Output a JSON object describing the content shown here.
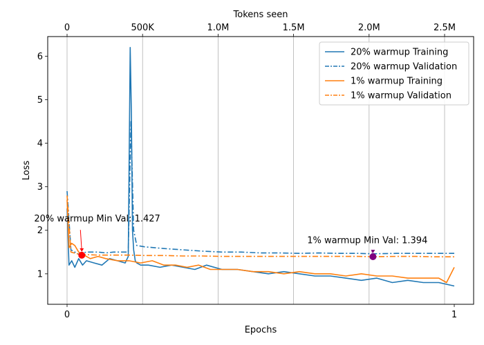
{
  "chart_data": {
    "type": "line",
    "xlabel": "Epochs",
    "ylabel": "Loss",
    "top_xlabel": "Tokens seen",
    "xlim": [
      -0.05,
      1.05
    ],
    "ylim": [
      0.3,
      6.45
    ],
    "x_ticks": [
      {
        "value": 0,
        "label": "0"
      },
      {
        "value": 1,
        "label": "1"
      }
    ],
    "y_ticks": [
      {
        "value": 1,
        "label": "1"
      },
      {
        "value": 2,
        "label": "2"
      },
      {
        "value": 3,
        "label": "3"
      },
      {
        "value": 4,
        "label": "4"
      },
      {
        "value": 5,
        "label": "5"
      },
      {
        "value": 6,
        "label": "6"
      }
    ],
    "top_ticks": [
      {
        "value": 0,
        "label": "0"
      },
      {
        "value": 0.195,
        "label": "500K"
      },
      {
        "value": 0.39,
        "label": "1.0M"
      },
      {
        "value": 0.585,
        "label": "1.5M"
      },
      {
        "value": 0.78,
        "label": "2.0M"
      },
      {
        "value": 0.975,
        "label": "2.5M"
      }
    ],
    "grid": {
      "vertical_at_top_ticks": true
    },
    "legend": {
      "placement": "top-right"
    },
    "series": [
      {
        "name": "20% warmup Training",
        "color": "#1f77b4",
        "style": "solid",
        "x": [
          0,
          0.005,
          0.012,
          0.02,
          0.03,
          0.04,
          0.05,
          0.07,
          0.09,
          0.11,
          0.13,
          0.15,
          0.158,
          0.163,
          0.166,
          0.169,
          0.172,
          0.176,
          0.18,
          0.19,
          0.21,
          0.24,
          0.27,
          0.3,
          0.33,
          0.36,
          0.4,
          0.44,
          0.48,
          0.52,
          0.56,
          0.6,
          0.64,
          0.68,
          0.72,
          0.76,
          0.8,
          0.84,
          0.88,
          0.92,
          0.96,
          1.0
        ],
        "y": [
          2.5,
          1.2,
          1.3,
          1.15,
          1.35,
          1.2,
          1.3,
          1.25,
          1.2,
          1.35,
          1.3,
          1.25,
          1.4,
          6.2,
          4.7,
          2.0,
          1.55,
          1.3,
          1.25,
          1.2,
          1.2,
          1.15,
          1.2,
          1.15,
          1.1,
          1.2,
          1.1,
          1.1,
          1.05,
          1.0,
          1.05,
          1.0,
          0.95,
          0.95,
          0.9,
          0.85,
          0.9,
          0.8,
          0.85,
          0.8,
          0.8,
          0.72
        ]
      },
      {
        "name": "20% warmup Validation",
        "color": "#1f77b4",
        "style": "dashdot",
        "x": [
          0,
          0.01,
          0.03,
          0.05,
          0.08,
          0.1,
          0.12,
          0.14,
          0.158,
          0.165,
          0.172,
          0.18,
          0.2,
          0.25,
          0.3,
          0.35,
          0.4,
          0.45,
          0.5,
          0.55,
          0.6,
          0.65,
          0.7,
          0.75,
          0.79,
          0.85,
          0.9,
          0.95,
          1.0
        ],
        "y": [
          2.9,
          1.55,
          1.45,
          1.5,
          1.5,
          1.48,
          1.5,
          1.5,
          1.5,
          4.5,
          2.0,
          1.65,
          1.62,
          1.58,
          1.55,
          1.52,
          1.5,
          1.5,
          1.48,
          1.48,
          1.47,
          1.48,
          1.47,
          1.47,
          1.46,
          1.47,
          1.47,
          1.47,
          1.47
        ]
      },
      {
        "name": "1% warmup Training",
        "color": "#ff7f0e",
        "style": "solid",
        "x": [
          0,
          0.005,
          0.012,
          0.02,
          0.03,
          0.04,
          0.06,
          0.08,
          0.1,
          0.13,
          0.16,
          0.19,
          0.22,
          0.25,
          0.28,
          0.31,
          0.34,
          0.37,
          0.4,
          0.44,
          0.48,
          0.52,
          0.56,
          0.6,
          0.64,
          0.68,
          0.72,
          0.76,
          0.8,
          0.84,
          0.88,
          0.92,
          0.96,
          0.98,
          1.0
        ],
        "y": [
          2.7,
          1.6,
          1.7,
          1.65,
          1.5,
          1.45,
          1.35,
          1.4,
          1.35,
          1.3,
          1.3,
          1.25,
          1.3,
          1.2,
          1.2,
          1.15,
          1.2,
          1.1,
          1.1,
          1.1,
          1.05,
          1.05,
          1.0,
          1.05,
          1.0,
          1.0,
          0.95,
          1.0,
          0.95,
          0.95,
          0.9,
          0.9,
          0.9,
          0.8,
          1.15
        ]
      },
      {
        "name": "1% warmup Validation",
        "color": "#ff7f0e",
        "style": "dashdot",
        "x": [
          0,
          0.01,
          0.03,
          0.05,
          0.08,
          0.12,
          0.16,
          0.2,
          0.25,
          0.3,
          0.35,
          0.4,
          0.45,
          0.5,
          0.55,
          0.6,
          0.65,
          0.7,
          0.75,
          0.79,
          0.85,
          0.9,
          0.95,
          1.0
        ],
        "y": [
          2.8,
          1.5,
          1.45,
          1.44,
          1.43,
          1.43,
          1.43,
          1.42,
          1.42,
          1.41,
          1.41,
          1.4,
          1.4,
          1.4,
          1.4,
          1.4,
          1.4,
          1.4,
          1.4,
          1.394,
          1.4,
          1.4,
          1.39,
          1.39
        ]
      }
    ],
    "annotations": [
      {
        "text": "20% warmup Min Val: 1.427",
        "x": 0.038,
        "y": 1.427,
        "marker_color": "#ff0000",
        "arrow_color": "#ff0000",
        "text_x": -0.085,
        "text_y": 2.2
      },
      {
        "text": "1% warmup Min Val: 1.394",
        "x": 0.79,
        "y": 1.394,
        "marker_color": "#800080",
        "arrow_color": "#800080",
        "text_x": 0.62,
        "text_y": 1.7
      }
    ]
  }
}
